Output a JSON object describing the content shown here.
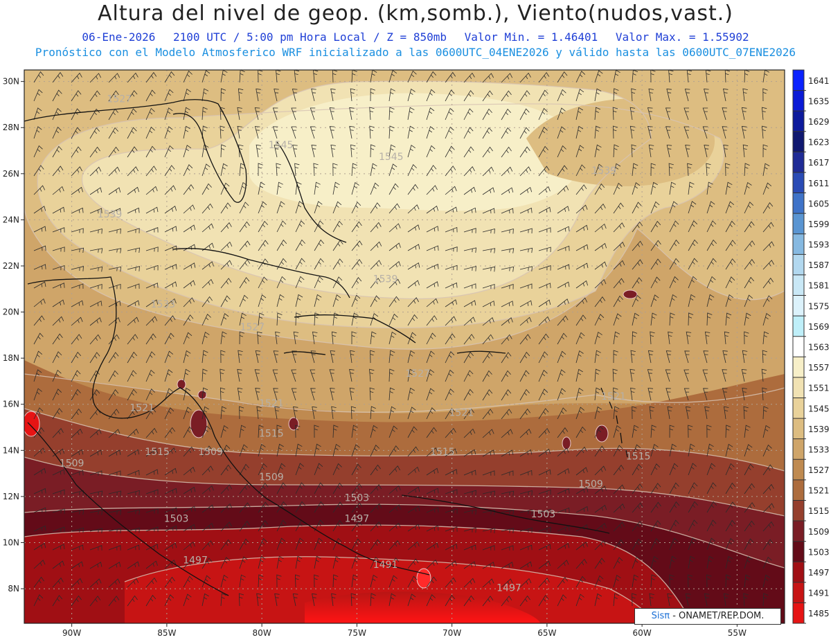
{
  "header": {
    "title": "Altura del nivel de geop. (km,somb.), Viento(nudos,vast.)",
    "date": "06-Ene-2026",
    "time": "2100 UTC / 5:00 pm Hora Local / Z = 850mb",
    "min_label": "Valor Min. = 1.46401",
    "max_label": "Valor Max. = 1.55902",
    "forecast_line": "Pronóstico con el Modelo Atmosferico WRF inicializado a las 0600UTC_04ENE2026 y válido hasta las  0600UTC_07ENE2026"
  },
  "map": {
    "lon_range": [
      -92.5,
      -52.5
    ],
    "lat_range": [
      6.5,
      30.5
    ],
    "lat_ticks": [
      "8N",
      "10N",
      "12N",
      "14N",
      "16N",
      "18N",
      "20N",
      "22N",
      "24N",
      "26N",
      "28N",
      "30N"
    ],
    "lat_values": [
      8,
      10,
      12,
      14,
      16,
      18,
      20,
      22,
      24,
      26,
      28,
      30
    ],
    "lon_ticks": [
      "90W",
      "85W",
      "80W",
      "75W",
      "70W",
      "65W",
      "60W",
      "55W"
    ],
    "lon_values": [
      -90,
      -85,
      -80,
      -75,
      -70,
      -65,
      -60,
      -55
    ],
    "contour_labels": [
      {
        "text": "1527",
        "lon": -87.5,
        "lat": 29.1
      },
      {
        "text": "1545",
        "lon": -79.0,
        "lat": 27.1
      },
      {
        "text": "1545",
        "lon": -73.2,
        "lat": 26.6
      },
      {
        "text": "1539",
        "lon": -62.0,
        "lat": 26.0
      },
      {
        "text": "1539",
        "lon": -88.0,
        "lat": 24.1
      },
      {
        "text": "1539",
        "lon": -73.5,
        "lat": 21.3
      },
      {
        "text": "1533",
        "lon": -85.2,
        "lat": 20.2
      },
      {
        "text": "1527",
        "lon": -80.5,
        "lat": 19.2
      },
      {
        "text": "1527",
        "lon": -71.8,
        "lat": 17.2
      },
      {
        "text": "1521",
        "lon": -86.3,
        "lat": 15.7
      },
      {
        "text": "1521",
        "lon": -79.5,
        "lat": 15.9
      },
      {
        "text": "1521",
        "lon": -69.5,
        "lat": 15.5
      },
      {
        "text": "1521",
        "lon": -61.5,
        "lat": 16.2
      },
      {
        "text": "1515",
        "lon": -85.5,
        "lat": 13.8
      },
      {
        "text": "1509",
        "lon": -82.7,
        "lat": 13.8
      },
      {
        "text": "1515",
        "lon": -79.5,
        "lat": 14.6
      },
      {
        "text": "1515",
        "lon": -70.5,
        "lat": 13.8
      },
      {
        "text": "1515",
        "lon": -60.2,
        "lat": 13.6
      },
      {
        "text": "1509",
        "lon": -90.0,
        "lat": 13.3
      },
      {
        "text": "1509",
        "lon": -79.5,
        "lat": 12.7
      },
      {
        "text": "1509",
        "lon": -62.7,
        "lat": 12.4
      },
      {
        "text": "1503",
        "lon": -75.0,
        "lat": 11.8
      },
      {
        "text": "1503",
        "lon": -84.5,
        "lat": 10.9
      },
      {
        "text": "1503",
        "lon": -65.2,
        "lat": 11.1
      },
      {
        "text": "1497",
        "lon": -75.0,
        "lat": 10.9
      },
      {
        "text": "1491",
        "lon": -73.5,
        "lat": 8.9
      },
      {
        "text": "1497",
        "lon": -83.5,
        "lat": 9.1
      },
      {
        "text": "1497",
        "lon": -67.0,
        "lat": 7.9
      }
    ]
  },
  "legend": {
    "labels": [
      "1641",
      "1635",
      "1629",
      "1623",
      "1617",
      "1611",
      "1605",
      "1599",
      "1593",
      "1587",
      "1581",
      "1575",
      "1569",
      "1563",
      "1557",
      "1551",
      "1545",
      "1539",
      "1533",
      "1527",
      "1521",
      "1515",
      "1509",
      "1503",
      "1497",
      "1491",
      "1485"
    ],
    "colors": [
      "#0a22ff",
      "#0a1ad6",
      "#0d1a9c",
      "#101870",
      "#1f2b96",
      "#2a4bb5",
      "#3f73c8",
      "#5a95d2",
      "#86b9e1",
      "#b2d8ef",
      "#c9e8f6",
      "#dcf2fb",
      "#bfeff9",
      "#ffffff",
      "#f7efc8",
      "#f1e2b3",
      "#e9d29a",
      "#ddbd81",
      "#cfa569",
      "#bf8a50",
      "#ad6c3d",
      "#953f2d",
      "#7a1d25",
      "#630b18",
      "#a00f14",
      "#c71414",
      "#e61414"
    ]
  },
  "credit": {
    "sis": "Sisπ",
    "rest": "- ONAMET/REP.DOM."
  }
}
